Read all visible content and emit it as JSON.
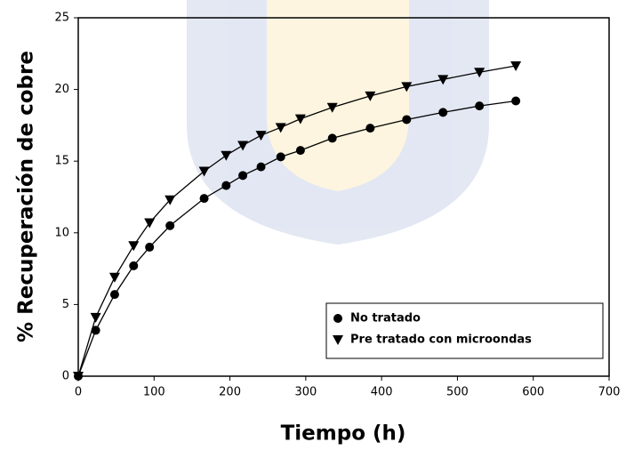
{
  "chart_data": {
    "type": "line",
    "xlabel": "Tiempo (h)",
    "ylabel": "% Recuperación de cobre",
    "x": [
      0,
      23,
      48,
      73,
      94,
      121,
      166,
      195,
      217,
      241,
      267,
      293,
      335,
      385,
      433,
      481,
      529,
      577
    ],
    "series": [
      {
        "name": "No tratado",
        "color": "#000000",
        "marker": "circle",
        "values": [
          0,
          3.2,
          5.7,
          7.7,
          9.0,
          10.5,
          12.4,
          13.3,
          14.0,
          14.6,
          15.3,
          15.75,
          16.6,
          17.3,
          17.9,
          18.4,
          18.85,
          19.2
        ]
      },
      {
        "name": "Pre tratado con microondas",
        "color": "#000000",
        "marker": "triangle-down",
        "values": [
          0,
          4.1,
          6.9,
          9.1,
          10.7,
          12.3,
          14.3,
          15.4,
          16.1,
          16.8,
          17.35,
          17.95,
          18.75,
          19.55,
          20.2,
          20.7,
          21.2,
          21.65
        ]
      }
    ],
    "xlim": [
      0,
      700
    ],
    "xticks": [
      0,
      100,
      200,
      300,
      400,
      500,
      600,
      700
    ],
    "ylim": [
      0,
      25
    ],
    "yticks": [
      0,
      5,
      10,
      15,
      20,
      25
    ],
    "legend": "lower right"
  }
}
